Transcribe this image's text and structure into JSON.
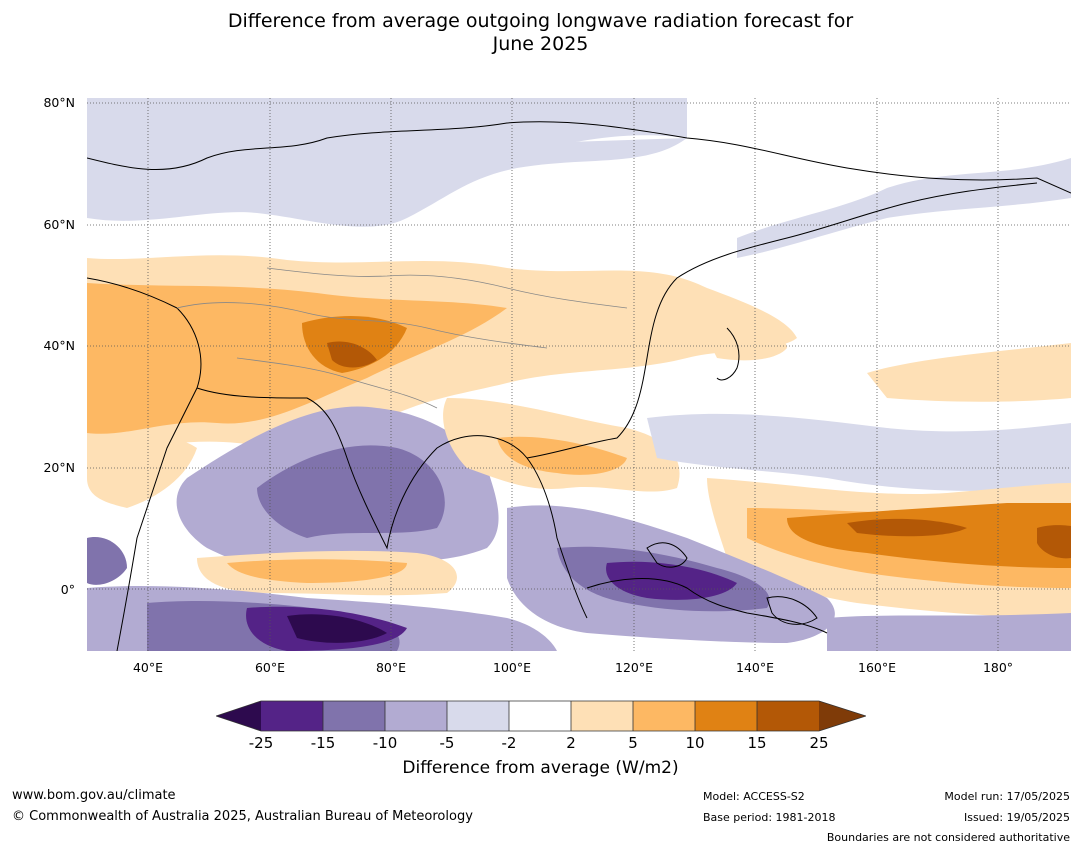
{
  "title_line1": "Difference from average outgoing longwave radiation forecast for",
  "title_line2": "June 2025",
  "map": {
    "lat_labels": [
      "80°N",
      "60°N",
      "40°N",
      "20°N",
      "0°"
    ],
    "lon_labels": [
      "40°E",
      "60°E",
      "80°E",
      "100°E",
      "120°E",
      "140°E",
      "160°E",
      "180°"
    ]
  },
  "colorbar": {
    "ticks": [
      "-25",
      "-15",
      "-10",
      "-5",
      "-2",
      "2",
      "5",
      "10",
      "15",
      "25"
    ],
    "colors": [
      "#2d0a4e",
      "#542387",
      "#8073ac",
      "#b2abd2",
      "#d8daeb",
      "#ffffff",
      "#fee0b6",
      "#fdb863",
      "#e08214",
      "#b35806",
      "#7f3b08"
    ],
    "label": "Difference from average (W/m2)"
  },
  "footer": {
    "website": "www.bom.gov.au/climate",
    "copyright": "© Commonwealth of Australia 2025, Australian Bureau of Meteorology",
    "model": "Model: ACCESS-S2",
    "base_period": "Base period: 1981-2018",
    "model_run": "Model run: 17/05/2025",
    "issued": "Issued: 19/05/2025",
    "disclaimer": "Boundaries are not considered authoritative"
  }
}
